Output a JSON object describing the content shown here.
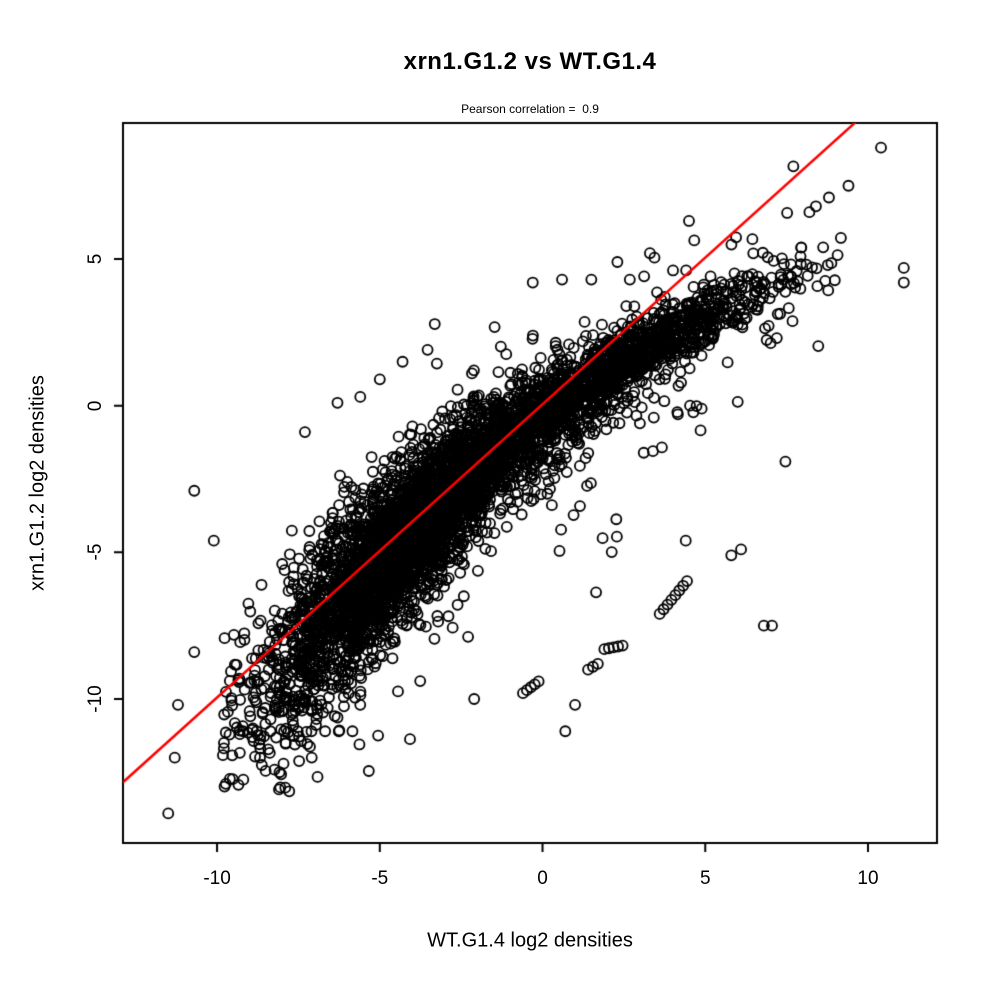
{
  "chart_data": {
    "type": "scatter",
    "title": "xrn1.G1.2 vs WT.G1.4",
    "subtitle": "Pearson correlation =  0.9",
    "xlabel": "WT.G1.4 log2 densities",
    "ylabel": "xrn1.G1.2 log2 densities",
    "pearson_correlation": 0.9,
    "xlim": [
      -12.89,
      12.12
    ],
    "ylim": [
      -14.91,
      9.64
    ],
    "x_ticks": {
      "values": [
        -10,
        -5,
        0,
        5,
        10
      ],
      "labels": [
        "-10",
        "-5",
        "0",
        "5",
        "10"
      ]
    },
    "y_ticks": {
      "values": [
        -10,
        -5,
        0,
        5
      ],
      "labels": [
        "-10",
        "-5",
        "0",
        "5"
      ]
    },
    "grid": false,
    "legend": null,
    "background_color": "#FFFFFF",
    "axis_color": "#000000",
    "marker": {
      "shape": "open-circle",
      "radius": 5,
      "stroke": "#000000",
      "stroke_width": 1.8
    },
    "fit_line": {
      "slope": 1.0,
      "intercept": 0.05,
      "color": "#FF0000",
      "width": 2.5
    },
    "cloud": {
      "n": 5200,
      "seed": 1337,
      "x_mixture": [
        {
          "weight": 0.62,
          "mean": -4.4,
          "sd": 2.05
        },
        {
          "weight": 0.38,
          "mean": 1.3,
          "sd": 2.9
        }
      ],
      "x_min": -9.85,
      "x_max": 9.2,
      "center": {
        "sat_start": -2,
        "sat_coef": 0.09,
        "sat_exp": 1.6,
        "low_start": -2,
        "low_coef": 0.1,
        "low_exp": 1.2
      },
      "spread": {
        "sd_base": 0.5,
        "sd_slope": 0.105,
        "sd_ref": 3,
        "sd_max": 1.8
      },
      "tails": {
        "p_above": 0.045,
        "above_offset": 0.3,
        "above_scale": 0.95,
        "p_below": 0.1,
        "below_offset": 0.25,
        "below_scale": 1.3
      },
      "y_min": -13.2,
      "y_max": 8.7
    },
    "streaks": [
      {
        "x": -9.2,
        "y": -11.1,
        "n": 9,
        "dx": 0.42,
        "dy": 0.0
      },
      {
        "x": -8.6,
        "y": -10.5,
        "n": 7,
        "dx": 0.5,
        "dy": 0.05
      },
      {
        "x": 3.6,
        "y": -7.1,
        "n": 8,
        "dx": 0.12,
        "dy": 0.16
      },
      {
        "x": 1.9,
        "y": -8.3,
        "n": 5,
        "dx": 0.14,
        "dy": 0.03
      },
      {
        "x": -0.6,
        "y": -9.8,
        "n": 5,
        "dx": 0.12,
        "dy": 0.1
      }
    ],
    "outlier_points": [
      [
        -11.5,
        -13.9
      ],
      [
        -11.3,
        -12.0
      ],
      [
        -11.2,
        -10.2
      ],
      [
        -10.7,
        -8.4
      ],
      [
        -10.7,
        -2.9
      ],
      [
        -10.1,
        -4.6
      ],
      [
        -9.3,
        -11.2
      ],
      [
        -8.9,
        -11.0
      ],
      [
        0.7,
        -11.1
      ],
      [
        -2.1,
        -10.0
      ],
      [
        1.0,
        -10.2
      ],
      [
        1.4,
        -9.0
      ],
      [
        1.55,
        -8.9
      ],
      [
        1.7,
        -8.8
      ],
      [
        4.4,
        -4.6
      ],
      [
        5.8,
        -5.1
      ],
      [
        6.1,
        -4.9
      ],
      [
        6.8,
        -7.5
      ],
      [
        7.05,
        -7.5
      ],
      [
        11.1,
        4.7
      ],
      [
        11.1,
        4.2
      ],
      [
        10.4,
        8.8
      ],
      [
        9.4,
        7.5
      ],
      [
        8.8,
        7.1
      ],
      [
        8.4,
        6.8
      ],
      [
        8.2,
        6.6
      ],
      [
        -0.3,
        4.2
      ],
      [
        0.6,
        4.3
      ],
      [
        1.5,
        4.3
      ],
      [
        2.3,
        4.9
      ],
      [
        3.3,
        5.2
      ],
      [
        4.5,
        6.3
      ],
      [
        -6.3,
        0.1
      ],
      [
        -5.6,
        0.3
      ],
      [
        -5.0,
        0.9
      ],
      [
        -4.3,
        1.5
      ],
      [
        -7.3,
        -0.9
      ]
    ]
  }
}
